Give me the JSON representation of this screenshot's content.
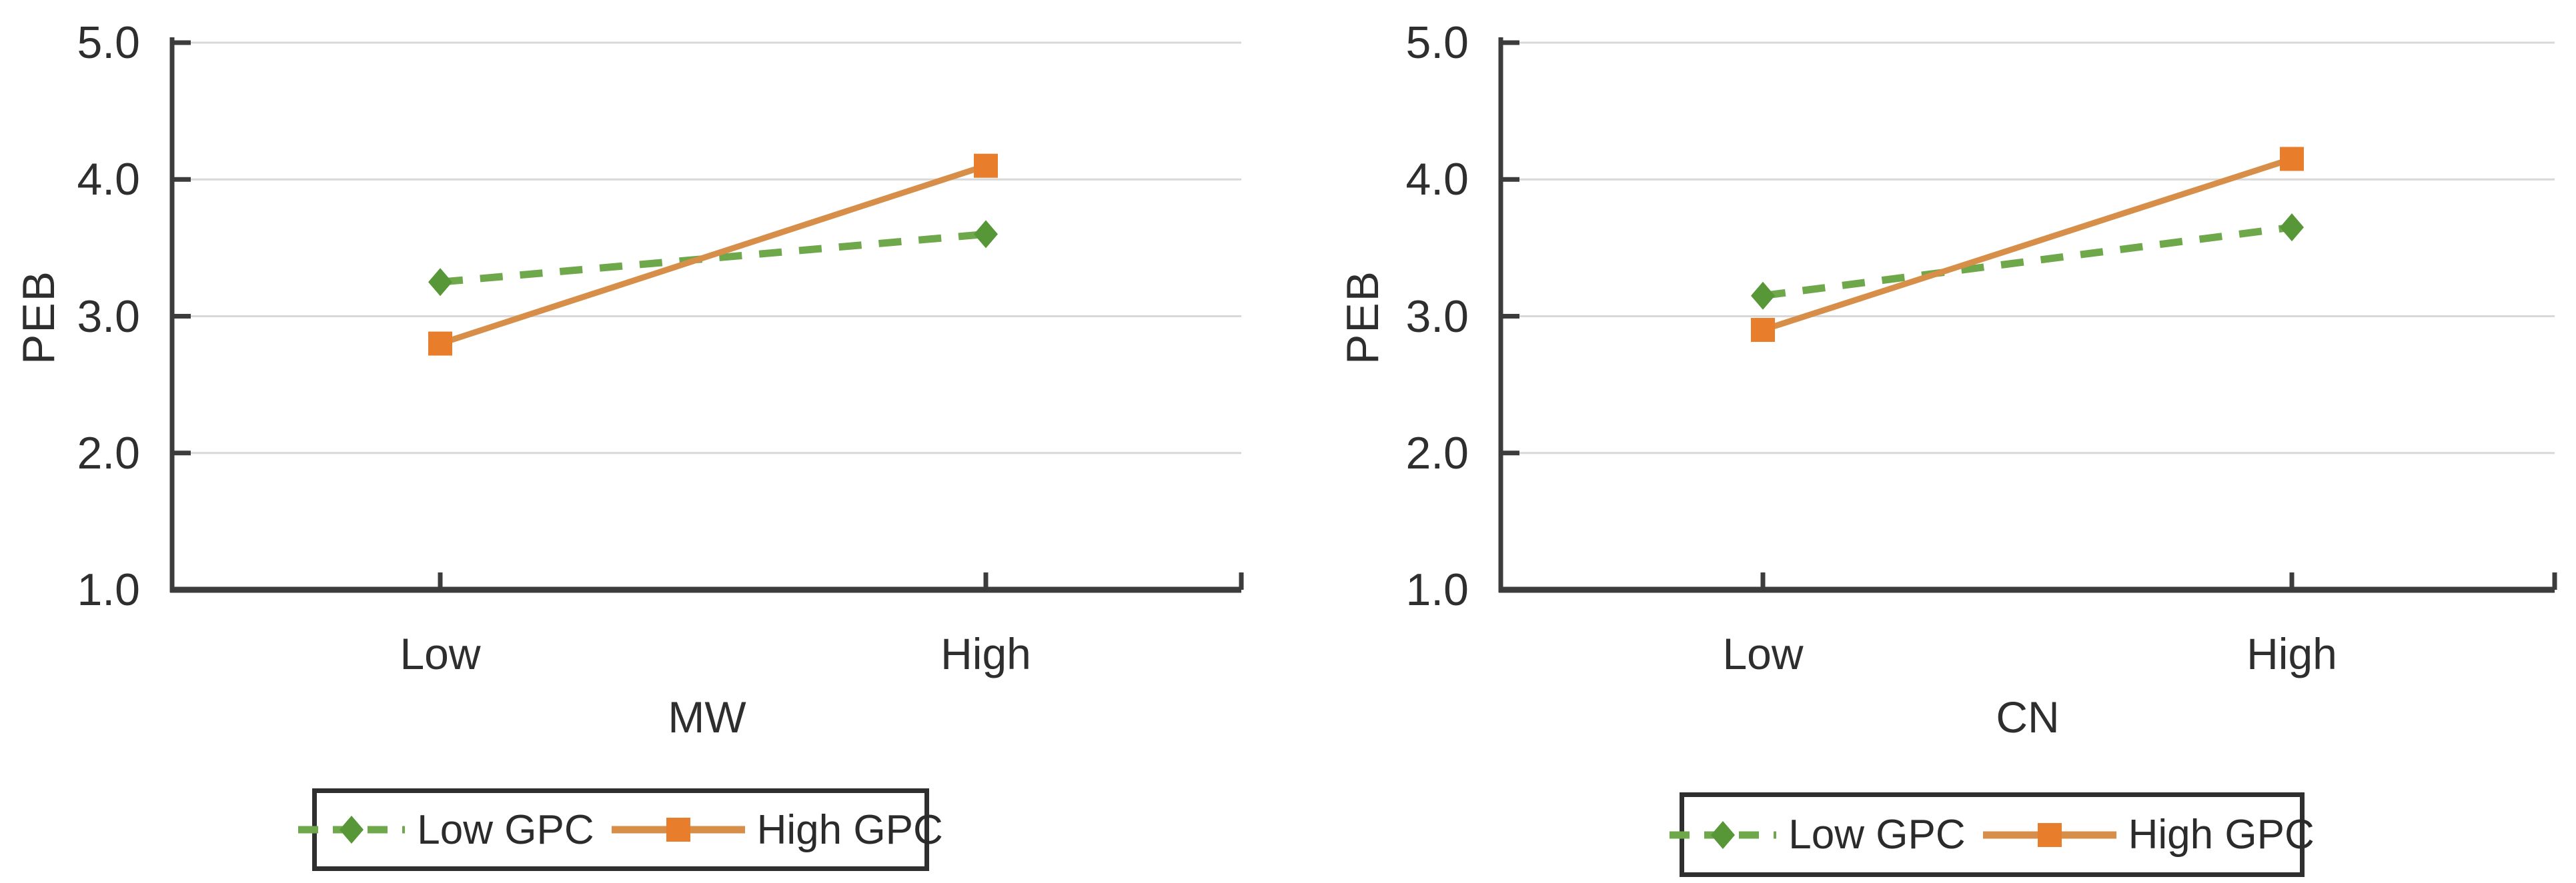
{
  "figure": {
    "background": "#ffffff",
    "axis_color": "#3c3c3c",
    "grid_color": "#d8d8d8",
    "text_color": "#2e2e2e"
  },
  "chart_data": [
    {
      "type": "line",
      "title": "",
      "xlabel": "MW",
      "ylabel": "PEB",
      "categories": [
        "Low",
        "High"
      ],
      "series": [
        {
          "name": "Low GPC",
          "values": [
            3.25,
            3.6
          ],
          "line_style": "dashed",
          "marker": "diamond",
          "line_color": "#6ea84b",
          "marker_color": "#579738"
        },
        {
          "name": "High GPC",
          "values": [
            2.8,
            4.1
          ],
          "line_style": "solid",
          "marker": "square",
          "line_color": "#d78e49",
          "marker_color": "#e87e2c"
        }
      ],
      "ylim": [
        1.0,
        5.0
      ],
      "y_tick_labels": [
        "1.0",
        "2.0",
        "3.0",
        "4.0",
        "5.0"
      ],
      "grid": "horizontal",
      "legend_position": "bottom"
    },
    {
      "type": "line",
      "title": "",
      "xlabel": "CN",
      "ylabel": "PEB",
      "categories": [
        "Low",
        "High"
      ],
      "series": [
        {
          "name": "Low GPC",
          "values": [
            3.15,
            3.65
          ],
          "line_style": "dashed",
          "marker": "diamond",
          "line_color": "#6ea84b",
          "marker_color": "#579738"
        },
        {
          "name": "High GPC",
          "values": [
            2.9,
            4.15
          ],
          "line_style": "solid",
          "marker": "square",
          "line_color": "#d78e49",
          "marker_color": "#e87e2c"
        }
      ],
      "ylim": [
        1.0,
        5.0
      ],
      "y_tick_labels": [
        "1.0",
        "2.0",
        "3.0",
        "4.0",
        "5.0"
      ],
      "grid": "horizontal",
      "legend_position": "bottom"
    }
  ]
}
